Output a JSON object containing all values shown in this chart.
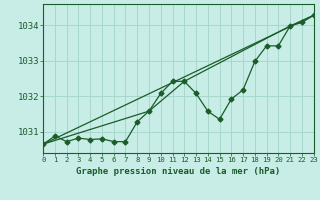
{
  "title": "Graphe pression niveau de la mer (hPa)",
  "background_color": "#c8ece6",
  "grid_color": "#a8d8cc",
  "line_color": "#1a5c2a",
  "x_min": 0,
  "x_max": 23,
  "y_min": 1030.4,
  "y_max": 1034.6,
  "y_ticks": [
    1031,
    1032,
    1033,
    1034
  ],
  "x_ticks": [
    0,
    1,
    2,
    3,
    4,
    5,
    6,
    7,
    8,
    9,
    10,
    11,
    12,
    13,
    14,
    15,
    16,
    17,
    18,
    19,
    20,
    21,
    22,
    23
  ],
  "series1_x": [
    0,
    1,
    2,
    3,
    4,
    5,
    6,
    7,
    8,
    9,
    10,
    11,
    12,
    13,
    14,
    15,
    16,
    17,
    18,
    19,
    20,
    21,
    22,
    23
  ],
  "series1_y": [
    1030.65,
    1030.88,
    1030.72,
    1030.82,
    1030.78,
    1030.8,
    1030.72,
    1030.72,
    1031.28,
    1031.58,
    1032.08,
    1032.42,
    1032.42,
    1032.08,
    1031.58,
    1031.35,
    1031.92,
    1032.18,
    1032.98,
    1033.42,
    1033.42,
    1033.98,
    1034.08,
    1034.28
  ],
  "series2_x": [
    0,
    23
  ],
  "series2_y": [
    1030.65,
    1034.28
  ],
  "series3_x": [
    0,
    9,
    12,
    21,
    23
  ],
  "series3_y": [
    1030.65,
    1031.58,
    1032.42,
    1033.98,
    1034.28
  ]
}
